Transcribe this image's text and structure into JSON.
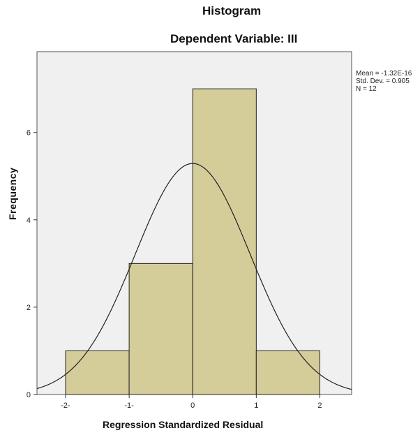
{
  "chart_data": {
    "type": "bar",
    "title": "Histogram",
    "subtitle": "Dependent Variable: III",
    "xlabel": "Regression Standardized Residual",
    "ylabel": "Frequency",
    "bins": [
      {
        "from": -2,
        "to": -1,
        "value": 1
      },
      {
        "from": -1,
        "to": 0,
        "value": 3
      },
      {
        "from": 0,
        "to": 1,
        "value": 7
      },
      {
        "from": 1,
        "to": 2,
        "value": 1
      }
    ],
    "x_ticks": [
      {
        "value": -2,
        "label": "-2-"
      },
      {
        "value": -1,
        "label": "-1-"
      },
      {
        "value": 0,
        "label": "0"
      },
      {
        "value": 1,
        "label": "1"
      },
      {
        "value": 2,
        "label": "2"
      }
    ],
    "y_ticks": [
      0,
      2,
      4,
      6
    ],
    "xlim": [
      -2.45,
      2.5
    ],
    "ylim": [
      0,
      7.85
    ],
    "grid": false,
    "normal_curve": {
      "mean": 0,
      "sd": 0.905,
      "n": 12,
      "bin_width": 1
    },
    "stats": {
      "mean": "Mean = -1.32E-16",
      "sd": "Std. Dev. = 0.905",
      "n": "N = 12"
    },
    "colors": {
      "bar": "#d4cc99",
      "plot_bg": "#f0f0f0",
      "curve": "#222222",
      "edge": "#222222"
    }
  }
}
